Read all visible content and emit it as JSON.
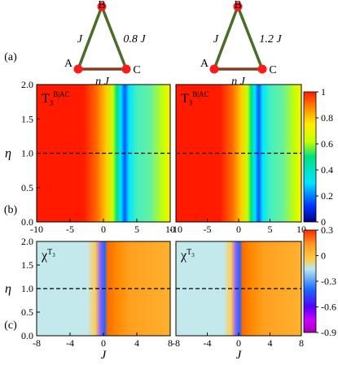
{
  "panel_labels": [
    "(a)",
    "(b)",
    "(c)"
  ],
  "triangles": [
    {
      "vertices": {
        "top": "B",
        "left": "A",
        "right": "C"
      },
      "edges": {
        "AB": "J",
        "BC": "0.8 J",
        "AC": "η J"
      }
    },
    {
      "vertices": {
        "top": "B",
        "left": "A",
        "right": "C"
      },
      "edges": {
        "AB": "J",
        "BC": "1.2 J",
        "AC": "η J"
      }
    }
  ],
  "colors": {
    "node": "#ff1a1a",
    "edge_green": "#4a6d2a",
    "edge_brown": "#8b3a1a"
  },
  "chart_data": [
    {
      "type": "heatmap",
      "panel": "(b) left",
      "annotation": "T3^{B|AC}",
      "ylabel": "η",
      "xlim": [
        -10,
        10
      ],
      "ylim": [
        0,
        2
      ],
      "xticks": [
        "-10",
        "-5",
        "0",
        "5",
        "10"
      ],
      "yticks": [
        "0.0",
        "0.5",
        "1.0",
        "1.5",
        "2.0"
      ],
      "dashed_line_y": 1.0
    },
    {
      "type": "heatmap",
      "panel": "(b) right",
      "annotation": "T3^{B|AC}",
      "xlim": [
        -10,
        10
      ],
      "ylim": [
        0,
        2
      ],
      "xticks": [
        "-10",
        "-5",
        "0",
        "5",
        "10"
      ],
      "dashed_line_y": 1.0
    },
    {
      "type": "heatmap",
      "panel": "(c) left",
      "annotation": "χ^{T3}",
      "xlabel": "J",
      "ylabel": "η",
      "xlim": [
        -8,
        8
      ],
      "ylim": [
        0,
        2
      ],
      "xticks": [
        "-8",
        "-4",
        "0",
        "4",
        "8"
      ],
      "yticks": [
        "0.0",
        "0.5",
        "1.0",
        "1.5",
        "2.0"
      ],
      "dashed_line_y": 1.0
    },
    {
      "type": "heatmap",
      "panel": "(c) right",
      "annotation": "χ^{T3}",
      "xlabel": "J",
      "xlim": [
        -8,
        8
      ],
      "ylim": [
        0,
        2
      ],
      "xticks": [
        "-8",
        "-4",
        "0",
        "4",
        "8"
      ],
      "dashed_line_y": 1.0
    }
  ],
  "colorbars": [
    {
      "ticks": [
        "1",
        "0.8",
        "0.6",
        "0.4",
        "0.2",
        "0"
      ]
    },
    {
      "ticks": [
        "0.3",
        "0",
        "-0.3",
        "-0.6",
        "-0.9"
      ]
    }
  ]
}
